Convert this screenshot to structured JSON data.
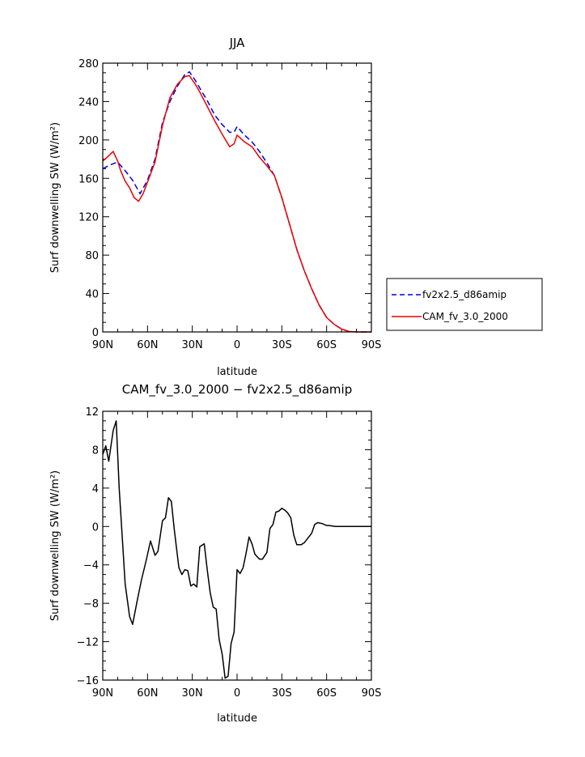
{
  "chart_data": [
    {
      "type": "line",
      "title": "JJA",
      "xlabel": "latitude",
      "ylabel": "Surf downwelling SW (W/m²)",
      "xlim": [
        90,
        -90
      ],
      "ylim": [
        0,
        280
      ],
      "x_tick_labels": [
        "90N",
        "60N",
        "30N",
        "0",
        "30S",
        "60S",
        "90S"
      ],
      "y_tick_labels": [
        "0",
        "40",
        "80",
        "120",
        "160",
        "200",
        "240",
        "280"
      ],
      "legend_position": "outside-right",
      "series": [
        {
          "name": "fv2x2.5_d86amip",
          "color": "#0000dd",
          "dash": "dashed",
          "x": [
            90,
            85,
            80,
            75,
            70,
            65,
            60,
            55,
            50,
            45,
            40,
            35,
            32,
            28,
            25,
            20,
            15,
            10,
            5,
            2,
            0,
            -5,
            -10,
            -15,
            -20,
            -25,
            -30,
            -35,
            -40,
            -45,
            -50,
            -55,
            -60,
            -65,
            -70,
            -75,
            -80,
            -85,
            -90
          ],
          "y": [
            170,
            174,
            177,
            168,
            158,
            144,
            158,
            180,
            218,
            240,
            256,
            268,
            271,
            262,
            254,
            241,
            226,
            216,
            208,
            208,
            214,
            205,
            198,
            188,
            176,
            163,
            140,
            113,
            86,
            64,
            45,
            28,
            15,
            8,
            3,
            0.5,
            0,
            0,
            0
          ]
        },
        {
          "name": "CAM_fv_3.0_2000",
          "color": "#ee0000",
          "dash": "solid",
          "x": [
            90,
            87,
            83,
            80,
            78,
            75,
            72,
            69,
            66,
            63,
            60,
            55,
            50,
            45,
            40,
            35,
            32,
            28,
            25,
            20,
            15,
            10,
            5,
            2,
            0,
            -5,
            -10,
            -15,
            -20,
            -25,
            -30,
            -35,
            -40,
            -45,
            -50,
            -55,
            -60,
            -65,
            -70,
            -75,
            -80,
            -85,
            -90
          ],
          "y": [
            178,
            182,
            188,
            178,
            168,
            157,
            150,
            140,
            136,
            144,
            156,
            177,
            215,
            244,
            258,
            266,
            267,
            258,
            250,
            235,
            220,
            206,
            193,
            196,
            205,
            198,
            193,
            182,
            173,
            163,
            140,
            113,
            86,
            64,
            45,
            28,
            15,
            8,
            3,
            0.5,
            0,
            0,
            0
          ]
        }
      ]
    },
    {
      "type": "line",
      "title": "CAM_fv_3.0_2000 − fv2x2.5_d86amip",
      "xlabel": "latitude",
      "ylabel": "Surf downwelling SW (W/m²)",
      "xlim": [
        90,
        -90
      ],
      "ylim": [
        -16,
        12
      ],
      "x_tick_labels": [
        "90N",
        "60N",
        "30N",
        "0",
        "30S",
        "60S",
        "90S"
      ],
      "y_tick_labels": [
        "−16",
        "−12",
        "−8",
        "−4",
        "0",
        "4",
        "8",
        "12"
      ],
      "series": [
        {
          "color": "#000000",
          "x": [
            90,
            88,
            86,
            83,
            81,
            79,
            75,
            72,
            70,
            67,
            64,
            61,
            58,
            55,
            53,
            50,
            48,
            46,
            44,
            42,
            39,
            37,
            35,
            33,
            31,
            29,
            27,
            25,
            22,
            20,
            18,
            16,
            14,
            12,
            10,
            8,
            6,
            4,
            2,
            0,
            -2,
            -4,
            -6,
            -8,
            -10,
            -12,
            -15,
            -17,
            -20,
            -22,
            -24,
            -26,
            -28,
            -30,
            -32,
            -34,
            -36,
            -38,
            -40,
            -43,
            -45,
            -48,
            -50,
            -52,
            -54,
            -57,
            -60,
            -62,
            -64,
            -66,
            -68,
            -70,
            -75,
            -80,
            -85,
            -90
          ],
          "y": [
            7.5,
            8.4,
            6.8,
            10,
            11,
            4,
            -6,
            -9.4,
            -10.2,
            -7.8,
            -5.5,
            -3.6,
            -1.5,
            -3,
            -2.6,
            0.6,
            0.9,
            3,
            2.6,
            -0.4,
            -4.3,
            -5,
            -4.5,
            -4.6,
            -6.2,
            -6,
            -6.3,
            -2.1,
            -1.8,
            -4.5,
            -6.9,
            -8.4,
            -8.6,
            -11.8,
            -13.3,
            -15.8,
            -15.6,
            -12.2,
            -11,
            -4.5,
            -4.9,
            -4.3,
            -2.8,
            -1.1,
            -1.8,
            -2.9,
            -3.4,
            -3.4,
            -2.7,
            -0.2,
            0.2,
            1.5,
            1.6,
            1.9,
            1.7,
            1.4,
            0.9,
            -0.9,
            -1.9,
            -1.9,
            -1.7,
            -1.1,
            -0.7,
            0.2,
            0.4,
            0.3,
            0.1,
            0.1,
            0.05,
            0,
            0,
            0,
            0,
            0,
            0,
            0
          ]
        }
      ]
    }
  ]
}
